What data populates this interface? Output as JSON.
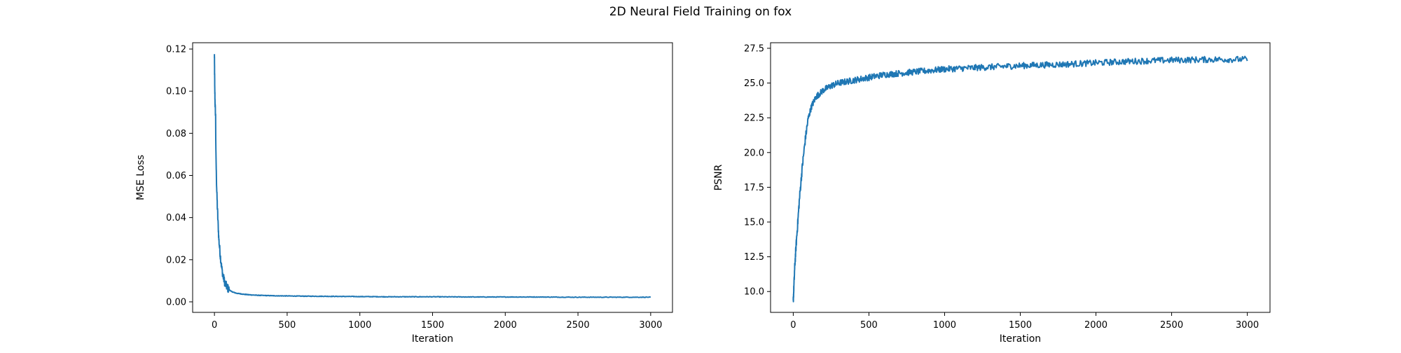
{
  "figure": {
    "title": "2D Neural Field Training on fox"
  },
  "chart_data": [
    {
      "type": "line",
      "title": "",
      "xlabel": "Iteration",
      "ylabel": "MSE Loss",
      "xlim": [
        -150,
        3150
      ],
      "ylim": [
        -0.005,
        0.123
      ],
      "xticks": [
        0,
        500,
        1000,
        1500,
        2000,
        2500,
        3000
      ],
      "yticks": [
        0.0,
        0.02,
        0.04,
        0.06,
        0.08,
        0.1,
        0.12
      ],
      "ytick_labels": [
        "0.00",
        "0.02",
        "0.04",
        "0.06",
        "0.08",
        "0.10",
        "0.12"
      ],
      "xtick_labels": [
        "0",
        "500",
        "1000",
        "1500",
        "2000",
        "2500",
        "3000"
      ],
      "grid": false,
      "color": "#1f77b4",
      "series": [
        {
          "x": [
            0,
            2,
            5,
            8,
            10,
            15,
            20,
            25,
            30,
            40,
            50,
            60,
            70,
            80,
            90,
            100,
            120,
            150,
            200,
            250,
            300,
            400,
            500,
            600,
            800,
            1000,
            1200,
            1500,
            1800,
            2000,
            2200,
            2500,
            2800,
            3000
          ],
          "y": [
            0.117,
            0.101,
            0.093,
            0.088,
            0.07,
            0.055,
            0.045,
            0.037,
            0.03,
            0.022,
            0.016,
            0.012,
            0.0095,
            0.0078,
            0.0066,
            0.0058,
            0.0048,
            0.0041,
            0.0036,
            0.0033,
            0.0031,
            0.0029,
            0.0028,
            0.0027,
            0.0026,
            0.0025,
            0.0024,
            0.0024,
            0.0023,
            0.0023,
            0.0023,
            0.0022,
            0.0022,
            0.0022
          ]
        }
      ]
    },
    {
      "type": "line",
      "title": "",
      "xlabel": "Iteration",
      "ylabel": "PSNR",
      "xlim": [
        -150,
        3150
      ],
      "ylim": [
        8.5,
        27.9
      ],
      "xticks": [
        0,
        500,
        1000,
        1500,
        2000,
        2500,
        3000
      ],
      "yticks": [
        10.0,
        12.5,
        15.0,
        17.5,
        20.0,
        22.5,
        25.0,
        27.5
      ],
      "ytick_labels": [
        "10.0",
        "12.5",
        "15.0",
        "17.5",
        "20.0",
        "22.5",
        "25.0",
        "27.5"
      ],
      "xtick_labels": [
        "0",
        "500",
        "1000",
        "1500",
        "2000",
        "2500",
        "3000"
      ],
      "grid": false,
      "color": "#1f77b4",
      "series": [
        {
          "x": [
            0,
            5,
            10,
            20,
            30,
            40,
            50,
            60,
            70,
            80,
            90,
            100,
            120,
            150,
            200,
            250,
            300,
            400,
            500,
            600,
            800,
            1000,
            1200,
            1500,
            1800,
            2000,
            2200,
            2500,
            2800,
            3000
          ],
          "y": [
            9.3,
            10.5,
            11.8,
            13.5,
            15.0,
            16.5,
            17.8,
            19.0,
            20.0,
            21.0,
            21.8,
            22.5,
            23.3,
            24.0,
            24.5,
            24.8,
            25.0,
            25.2,
            25.4,
            25.6,
            25.8,
            26.0,
            26.1,
            26.25,
            26.35,
            26.45,
            26.55,
            26.65,
            26.7,
            26.7
          ]
        }
      ]
    }
  ]
}
